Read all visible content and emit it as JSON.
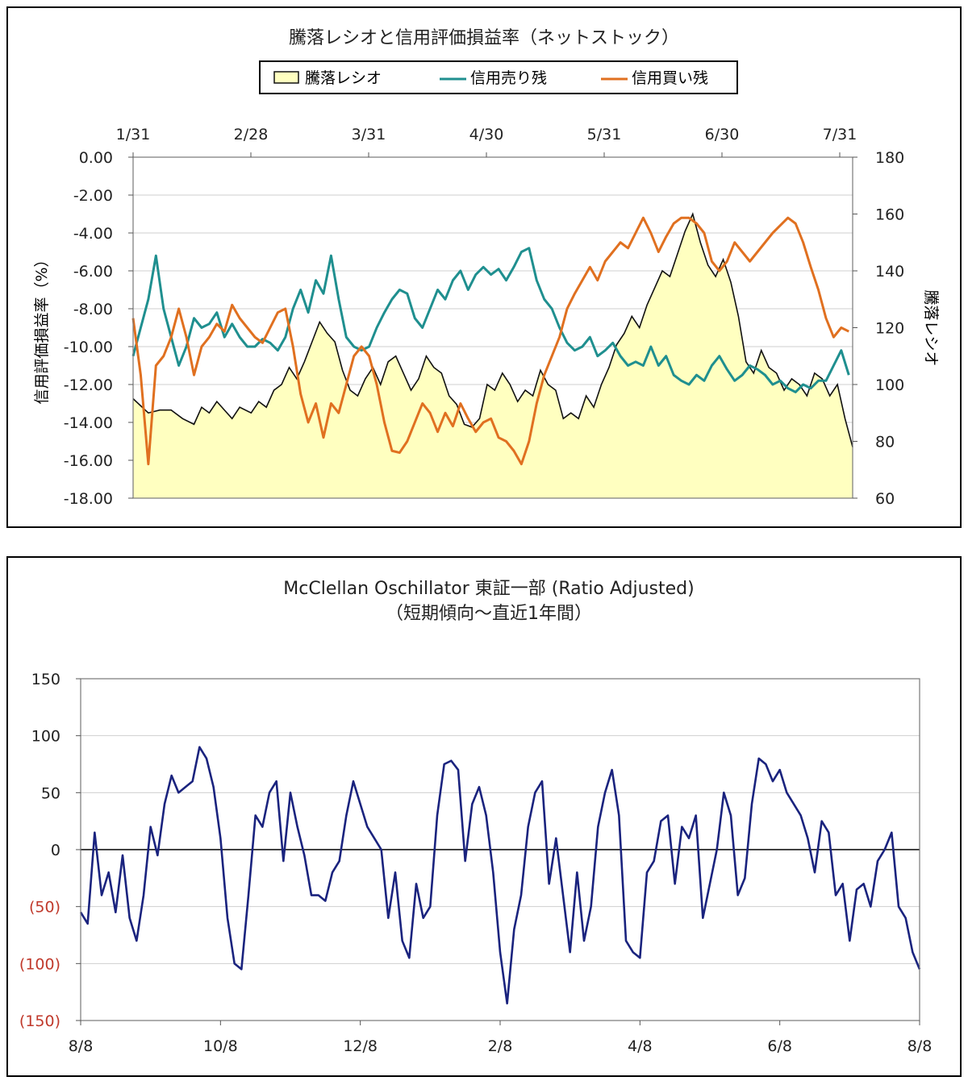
{
  "chart_data": [
    {
      "type": "line",
      "title": "騰落レシオと信用評価損益率（ネットストック）",
      "legend": [
        "騰落レシオ",
        "信用売り残",
        "信用買い残"
      ],
      "legend_position": "top-center",
      "x_tick_labels": [
        "1/31",
        "2/28",
        "3/31",
        "4/30",
        "5/31",
        "6/30",
        "7/31"
      ],
      "y_left_label": "信用評価損益率（%）",
      "y_left_ticks": [
        "0.00",
        "-2.00",
        "-4.00",
        "-6.00",
        "-8.00",
        "-10.00",
        "-12.00",
        "-14.00",
        "-16.00",
        "-18.00"
      ],
      "y_left_range": [
        -18,
        0
      ],
      "y_right_label": "騰落レシオ",
      "y_right_ticks": [
        "180",
        "160",
        "140",
        "120",
        "100",
        "80",
        "60"
      ],
      "y_right_range": [
        60,
        180
      ],
      "grid": true,
      "x_range_days": [
        0,
        189
      ],
      "series": [
        {
          "name": "騰落レシオ",
          "axis": "right",
          "style": "area",
          "color": "#ffffc0",
          "line_color": "#111111",
          "x": [
            0,
            4,
            7,
            10,
            13,
            16,
            18,
            20,
            22,
            24,
            26,
            28,
            31,
            33,
            35,
            37,
            39,
            41,
            43,
            45,
            47,
            49,
            51,
            53,
            55,
            57,
            59,
            61,
            63,
            65,
            67,
            69,
            71,
            73,
            75,
            77,
            79,
            81,
            83,
            85,
            87,
            89,
            91,
            93,
            95,
            97,
            99,
            101,
            103,
            105,
            107,
            109,
            111,
            113,
            115,
            117,
            119,
            121,
            123,
            125,
            127,
            129,
            131,
            133,
            135,
            137,
            139,
            141,
            143,
            145,
            147,
            149,
            151,
            153,
            155,
            157,
            159,
            161,
            163,
            165,
            167,
            169,
            171,
            173,
            175,
            177,
            179,
            181,
            183,
            185,
            187,
            189
          ],
          "y": [
            95,
            90,
            91,
            91,
            88,
            86,
            92,
            90,
            94,
            91,
            88,
            92,
            90,
            94,
            92,
            98,
            100,
            106,
            102,
            108,
            115,
            122,
            118,
            115,
            105,
            98,
            96,
            102,
            106,
            100,
            108,
            110,
            104,
            98,
            102,
            110,
            106,
            104,
            96,
            93,
            86,
            85,
            88,
            100,
            98,
            104,
            100,
            94,
            98,
            96,
            105,
            100,
            98,
            88,
            90,
            88,
            96,
            92,
            100,
            106,
            114,
            118,
            124,
            120,
            128,
            134,
            140,
            138,
            146,
            154,
            160,
            150,
            142,
            138,
            144,
            136,
            124,
            108,
            104,
            112,
            106,
            104,
            98,
            102,
            100,
            96,
            104,
            102,
            96,
            100,
            88,
            78
          ]
        },
        {
          "name": "信用売り残",
          "axis": "left",
          "style": "line",
          "color": "#1f8f8f",
          "x": [
            0,
            2,
            4,
            6,
            8,
            10,
            12,
            14,
            16,
            18,
            20,
            22,
            24,
            26,
            28,
            30,
            32,
            34,
            36,
            38,
            40,
            42,
            44,
            46,
            48,
            50,
            52,
            54,
            56,
            58,
            60,
            62,
            64,
            66,
            68,
            70,
            72,
            74,
            76,
            78,
            80,
            82,
            84,
            86,
            88,
            90,
            92,
            94,
            96,
            98,
            100,
            102,
            104,
            106,
            108,
            110,
            112,
            114,
            116,
            118,
            120,
            122,
            124,
            126,
            128,
            130,
            132,
            134,
            136,
            138,
            140,
            142,
            144,
            146,
            148,
            150,
            152,
            154,
            156,
            158,
            160,
            162,
            164,
            166,
            168,
            170,
            172,
            174,
            176,
            178,
            180,
            182,
            184,
            186,
            188
          ],
          "y": [
            -10.5,
            -9.0,
            -7.5,
            -5.2,
            -8.0,
            -9.5,
            -11.0,
            -10.0,
            -8.5,
            -9.0,
            -8.8,
            -8.2,
            -9.5,
            -8.8,
            -9.5,
            -10.0,
            -10.0,
            -9.6,
            -9.8,
            -10.2,
            -9.5,
            -8.0,
            -7.0,
            -8.2,
            -6.5,
            -7.2,
            -5.2,
            -7.5,
            -9.5,
            -10.0,
            -10.2,
            -10.0,
            -9.0,
            -8.2,
            -7.5,
            -7.0,
            -7.2,
            -8.5,
            -9.0,
            -8.0,
            -7.0,
            -7.5,
            -6.5,
            -6.0,
            -7.0,
            -6.2,
            -5.8,
            -6.2,
            -5.9,
            -6.5,
            -5.8,
            -5.0,
            -4.8,
            -6.5,
            -7.5,
            -8.0,
            -9.0,
            -9.8,
            -10.2,
            -10.0,
            -9.5,
            -10.5,
            -10.2,
            -9.8,
            -10.5,
            -11.0,
            -10.8,
            -11.0,
            -10.0,
            -11.0,
            -10.5,
            -11.5,
            -11.8,
            -12.0,
            -11.5,
            -11.8,
            -11.0,
            -10.5,
            -11.2,
            -11.8,
            -11.5,
            -11.0,
            -11.2,
            -11.5,
            -12.0,
            -11.8,
            -12.2,
            -12.4,
            -12.0,
            -12.2,
            -11.8,
            -11.8,
            -11.0,
            -10.2,
            -11.5
          ]
        },
        {
          "name": "信用買い残",
          "axis": "left",
          "style": "line",
          "color": "#e07020",
          "x": [
            0,
            2,
            4,
            6,
            8,
            10,
            12,
            14,
            16,
            18,
            20,
            22,
            24,
            26,
            28,
            30,
            32,
            34,
            36,
            38,
            40,
            42,
            44,
            46,
            48,
            50,
            52,
            54,
            56,
            58,
            60,
            62,
            64,
            66,
            68,
            70,
            72,
            74,
            76,
            78,
            80,
            82,
            84,
            86,
            88,
            90,
            92,
            94,
            96,
            98,
            100,
            102,
            104,
            106,
            108,
            110,
            112,
            114,
            116,
            118,
            120,
            122,
            124,
            126,
            128,
            130,
            132,
            134,
            136,
            138,
            140,
            142,
            144,
            146,
            148,
            150,
            152,
            154,
            156,
            158,
            160,
            162,
            164,
            166,
            168,
            170,
            172,
            174,
            176,
            178,
            180,
            182,
            184,
            186,
            188
          ],
          "y": [
            -8.5,
            -11.5,
            -16.2,
            -11.0,
            -10.5,
            -9.5,
            -8.0,
            -9.5,
            -11.5,
            -10.0,
            -9.5,
            -8.8,
            -9.2,
            -7.8,
            -8.5,
            -9.0,
            -9.5,
            -9.8,
            -9.0,
            -8.2,
            -8.0,
            -10.0,
            -12.5,
            -14.0,
            -13.0,
            -14.8,
            -13.0,
            -13.5,
            -12.0,
            -10.5,
            -10.0,
            -10.5,
            -12.0,
            -14.0,
            -15.5,
            -15.6,
            -15.0,
            -14.0,
            -13.0,
            -13.5,
            -14.5,
            -13.5,
            -14.2,
            -13.0,
            -13.8,
            -14.5,
            -14.0,
            -13.8,
            -14.8,
            -15.0,
            -15.5,
            -16.2,
            -15.0,
            -13.0,
            -11.5,
            -10.5,
            -9.5,
            -8.0,
            -7.2,
            -6.5,
            -5.8,
            -6.5,
            -5.5,
            -5.0,
            -4.5,
            -4.8,
            -4.0,
            -3.2,
            -4.0,
            -5.0,
            -4.2,
            -3.5,
            -3.2,
            -3.2,
            -3.5,
            -4.0,
            -5.5,
            -6.0,
            -5.5,
            -4.5,
            -5.0,
            -5.5,
            -5.0,
            -4.5,
            -4.0,
            -3.6,
            -3.2,
            -3.5,
            -4.5,
            -5.8,
            -7.0,
            -8.5,
            -9.5,
            -9.0,
            -9.2
          ]
        }
      ]
    },
    {
      "type": "line",
      "title": "McClellan Oschillator 東証一部 (Ratio Adjusted)",
      "subtitle": "（短期傾向～直近1年間）",
      "x_tick_labels": [
        "8/8",
        "10/8",
        "12/8",
        "2/8",
        "4/8",
        "6/8",
        "8/8"
      ],
      "y_ticks": [
        "150",
        "100",
        "50",
        "0",
        "(50)",
        "(100)",
        "(150)"
      ],
      "y_range": [
        -150,
        150
      ],
      "grid": true,
      "negative_label_color": "#c0392b",
      "x_range_months": [
        0,
        12
      ],
      "series": [
        {
          "name": "",
          "color": "#1a237e",
          "x": [
            0.0,
            0.1,
            0.2,
            0.3,
            0.4,
            0.5,
            0.6,
            0.7,
            0.8,
            0.9,
            1.0,
            1.1,
            1.2,
            1.3,
            1.4,
            1.5,
            1.6,
            1.7,
            1.8,
            1.9,
            2.0,
            2.1,
            2.2,
            2.3,
            2.4,
            2.5,
            2.6,
            2.7,
            2.8,
            2.9,
            3.0,
            3.1,
            3.2,
            3.3,
            3.4,
            3.5,
            3.6,
            3.7,
            3.8,
            3.9,
            4.0,
            4.1,
            4.2,
            4.3,
            4.4,
            4.5,
            4.6,
            4.7,
            4.8,
            4.9,
            5.0,
            5.1,
            5.2,
            5.3,
            5.4,
            5.5,
            5.6,
            5.7,
            5.8,
            5.9,
            6.0,
            6.1,
            6.2,
            6.3,
            6.4,
            6.5,
            6.6,
            6.7,
            6.8,
            6.9,
            7.0,
            7.1,
            7.2,
            7.3,
            7.4,
            7.5,
            7.6,
            7.7,
            7.8,
            7.9,
            8.0,
            8.1,
            8.2,
            8.3,
            8.4,
            8.5,
            8.6,
            8.7,
            8.8,
            8.9,
            9.0,
            9.1,
            9.2,
            9.3,
            9.4,
            9.5,
            9.6,
            9.7,
            9.8,
            9.9,
            10.0,
            10.1,
            10.2,
            10.3,
            10.4,
            10.5,
            10.6,
            10.7,
            10.8,
            10.9,
            11.0,
            11.1,
            11.2,
            11.3,
            11.4,
            11.5,
            11.6,
            11.7,
            11.8,
            11.9,
            12.0
          ],
          "y": [
            -55,
            -65,
            15,
            -40,
            -20,
            -55,
            -5,
            -60,
            -80,
            -40,
            20,
            -5,
            40,
            65,
            50,
            55,
            60,
            90,
            80,
            55,
            10,
            -60,
            -100,
            -105,
            -40,
            30,
            20,
            50,
            60,
            -10,
            50,
            20,
            -5,
            -40,
            -40,
            -45,
            -20,
            -10,
            30,
            60,
            40,
            20,
            10,
            0,
            -60,
            -20,
            -80,
            -95,
            -30,
            -60,
            -50,
            30,
            75,
            78,
            70,
            -10,
            40,
            55,
            30,
            -20,
            -90,
            -135,
            -70,
            -40,
            20,
            50,
            60,
            -30,
            10,
            -40,
            -90,
            -20,
            -80,
            -50,
            20,
            50,
            70,
            30,
            -80,
            -90,
            -95,
            -20,
            -10,
            25,
            30,
            -30,
            20,
            10,
            30,
            -60,
            -30,
            0,
            50,
            30,
            -40,
            -25,
            40,
            80,
            75,
            60,
            70,
            50,
            40,
            30,
            10,
            -20,
            25,
            15,
            -40,
            -30,
            -80,
            -35,
            -30,
            -50,
            -10,
            0,
            15,
            -50,
            -60,
            -90,
            -105
          ]
        }
      ]
    }
  ]
}
